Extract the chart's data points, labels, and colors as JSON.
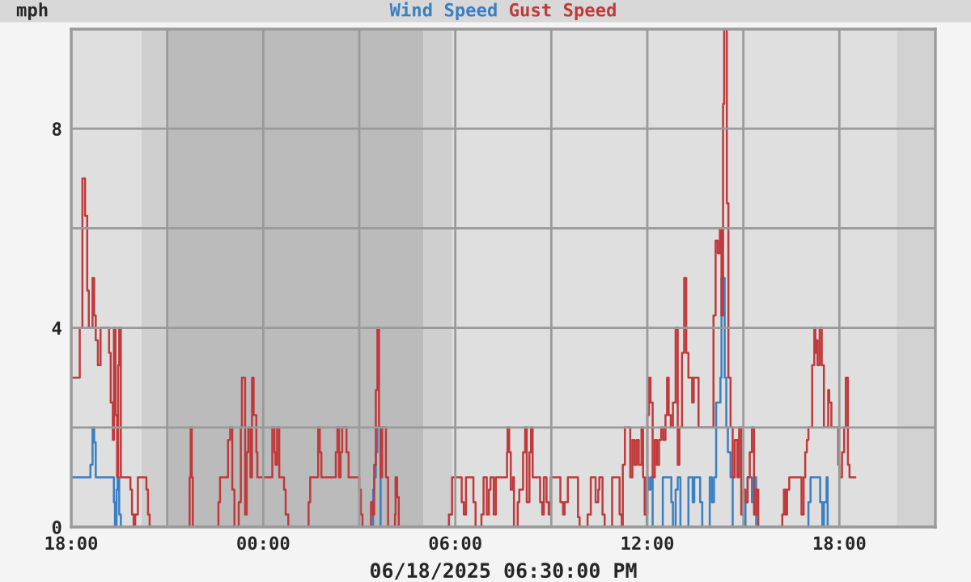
{
  "chart_data": {
    "type": "step",
    "xlabel": "06/18/2025 06:30:00 PM",
    "ylabel": "mph",
    "xlim": [
      "2025-06-17T18:00",
      "2025-06-18T21:00"
    ],
    "ylim": [
      0,
      10
    ],
    "xticks": [
      {
        "value": "2025-06-17T18:00",
        "label": "18:00"
      },
      {
        "value": "2025-06-17T21:00",
        "label": null
      },
      {
        "value": "2025-06-18T00:00",
        "label": "00:00"
      },
      {
        "value": "2025-06-18T03:00",
        "label": null
      },
      {
        "value": "2025-06-18T06:00",
        "label": "06:00"
      },
      {
        "value": "2025-06-18T09:00",
        "label": null
      },
      {
        "value": "2025-06-18T12:00",
        "label": "12:00"
      },
      {
        "value": "2025-06-18T15:00",
        "label": null
      },
      {
        "value": "2025-06-18T18:00",
        "label": "18:00"
      }
    ],
    "yticks": [
      0,
      {
        "value": 2,
        "label": null
      },
      4,
      {
        "value": 6,
        "label": null
      },
      8
    ],
    "grid": true,
    "legend": "top",
    "bands": [
      {
        "axis": "x",
        "from": "2025-06-17T20:12",
        "to": "2025-06-17T21:00",
        "color": "#cfcfcf"
      },
      {
        "axis": "x",
        "from": "2025-06-17T21:00",
        "to": "2025-06-18T05:00",
        "color": "#bbbbbb"
      },
      {
        "axis": "x",
        "from": "2025-06-18T05:00",
        "to": "2025-06-18T05:54",
        "color": "#cfcfcf"
      },
      {
        "axis": "x",
        "from": "2025-06-18T19:48",
        "to": "2025-06-18T21:00",
        "color": "#d2d2d2"
      }
    ],
    "series": [
      {
        "name": "Wind Speed",
        "color": "#3a7fc1",
        "x": [
          "2025-06-17T18:00",
          "2025-06-17T18:36",
          "2025-06-17T18:40",
          "2025-06-17T18:43",
          "2025-06-17T18:46",
          "2025-06-17T19:20",
          "2025-06-17T19:22",
          "2025-06-17T19:25",
          "2025-06-17T19:27",
          "2025-06-17T19:30",
          "2025-06-17T19:33",
          "2025-06-18T03:26",
          "2025-06-18T03:28",
          "2025-06-18T03:31",
          "2025-06-18T03:34",
          "2025-06-18T03:40",
          "2025-06-18T11:59",
          "2025-06-18T12:02",
          "2025-06-18T12:06",
          "2025-06-18T12:10",
          "2025-06-18T12:29",
          "2025-06-18T12:45",
          "2025-06-18T12:48",
          "2025-06-18T12:53",
          "2025-06-18T12:57",
          "2025-06-18T13:02",
          "2025-06-18T13:17",
          "2025-06-18T13:25",
          "2025-06-18T13:28",
          "2025-06-18T13:39",
          "2025-06-18T13:43",
          "2025-06-18T13:57",
          "2025-06-18T14:01",
          "2025-06-18T14:05",
          "2025-06-18T14:09",
          "2025-06-18T14:17",
          "2025-06-18T14:19",
          "2025-06-18T14:25",
          "2025-06-18T14:28",
          "2025-06-18T14:31",
          "2025-06-18T14:36",
          "2025-06-18T14:40",
          "2025-06-18T15:04",
          "2025-06-18T15:08",
          "2025-06-18T15:16",
          "2025-06-18T15:20",
          "2025-06-18T15:24",
          "2025-06-18T17:02",
          "2025-06-18T17:06",
          "2025-06-18T17:24",
          "2025-06-18T17:28",
          "2025-06-18T17:31",
          "2025-06-18T17:36",
          "2025-06-18T17:38",
          "2025-06-18T18:30"
        ],
        "values": [
          1.0,
          1.25,
          2.0,
          1.7,
          1.0,
          0.5,
          0,
          0.75,
          1.0,
          0.25,
          0,
          0.75,
          1.0,
          1.5,
          2.0,
          0,
          1.0,
          0.75,
          1.0,
          0,
          1.0,
          0.5,
          0,
          0.75,
          1.0,
          0,
          1.0,
          0.5,
          1.0,
          0.5,
          0,
          1.0,
          0.5,
          1.0,
          2.5,
          3.0,
          5.0,
          3.0,
          2.0,
          1.5,
          1.0,
          0,
          0.5,
          1.0,
          0.5,
          1.0,
          0,
          0.5,
          1.0,
          0.5,
          0,
          0.5,
          1.0,
          0,
          0
        ]
      },
      {
        "name": "Gust Speed",
        "color": "#c0393b",
        "x": [
          "2025-06-17T18:00",
          "2025-06-17T18:16",
          "2025-06-17T18:21",
          "2025-06-17T18:26",
          "2025-06-17T18:30",
          "2025-06-17T18:33",
          "2025-06-17T18:40",
          "2025-06-17T18:43",
          "2025-06-17T18:46",
          "2025-06-17T18:50",
          "2025-06-17T18:55",
          "2025-06-17T19:11",
          "2025-06-17T19:14",
          "2025-06-17T19:18",
          "2025-06-17T19:20",
          "2025-06-17T19:23",
          "2025-06-17T19:26",
          "2025-06-17T19:28",
          "2025-06-17T19:30",
          "2025-06-17T19:33",
          "2025-06-17T19:51",
          "2025-06-17T19:54",
          "2025-06-17T19:57",
          "2025-06-17T20:00",
          "2025-06-17T20:05",
          "2025-06-17T20:21",
          "2025-06-17T20:24",
          "2025-06-17T20:27",
          "2025-06-17T21:42",
          "2025-06-17T21:44",
          "2025-06-17T21:46",
          "2025-06-17T21:48",
          "2025-06-17T22:36",
          "2025-06-17T22:39",
          "2025-06-17T22:54",
          "2025-06-17T22:58",
          "2025-06-17T23:02",
          "2025-06-17T23:06",
          "2025-06-17T23:14",
          "2025-06-17T23:18",
          "2025-06-17T23:20",
          "2025-06-17T23:26",
          "2025-06-17T23:29",
          "2025-06-17T23:32",
          "2025-06-17T23:36",
          "2025-06-17T23:39",
          "2025-06-17T23:42",
          "2025-06-17T23:47",
          "2025-06-17T23:49",
          "2025-06-18T00:17",
          "2025-06-18T00:21",
          "2025-06-18T00:23",
          "2025-06-18T00:26",
          "2025-06-18T00:30",
          "2025-06-18T00:39",
          "2025-06-18T00:42",
          "2025-06-18T00:47",
          "2025-06-18T01:25",
          "2025-06-18T01:28",
          "2025-06-18T01:43",
          "2025-06-18T01:46",
          "2025-06-18T01:49",
          "2025-06-18T02:16",
          "2025-06-18T02:19",
          "2025-06-18T02:22",
          "2025-06-18T02:25",
          "2025-06-18T02:28",
          "2025-06-18T02:36",
          "2025-06-18T02:40",
          "2025-06-18T03:00",
          "2025-06-18T03:03",
          "2025-06-18T03:06",
          "2025-06-18T03:22",
          "2025-06-18T03:25",
          "2025-06-18T03:28",
          "2025-06-18T03:31",
          "2025-06-18T03:34",
          "2025-06-18T03:37",
          "2025-06-18T03:40",
          "2025-06-18T03:43",
          "2025-06-18T03:50",
          "2025-06-18T03:54",
          "2025-06-18T04:07",
          "2025-06-18T04:08",
          "2025-06-18T04:11",
          "2025-06-18T04:14",
          "2025-06-18T05:48",
          "2025-06-18T05:54",
          "2025-06-18T06:12",
          "2025-06-18T06:16",
          "2025-06-18T06:20",
          "2025-06-18T06:34",
          "2025-06-18T06:38",
          "2025-06-18T06:49",
          "2025-06-18T06:53",
          "2025-06-18T06:59",
          "2025-06-18T07:03",
          "2025-06-18T07:06",
          "2025-06-18T07:12",
          "2025-06-18T07:16",
          "2025-06-18T07:37",
          "2025-06-18T07:38",
          "2025-06-18T07:41",
          "2025-06-18T07:44",
          "2025-06-18T07:48",
          "2025-06-18T07:50",
          "2025-06-18T07:57",
          "2025-06-18T08:00",
          "2025-06-18T08:07",
          "2025-06-18T08:11",
          "2025-06-18T08:14",
          "2025-06-18T08:19",
          "2025-06-18T08:22",
          "2025-06-18T08:25",
          "2025-06-18T08:39",
          "2025-06-18T08:43",
          "2025-06-18T08:46",
          "2025-06-18T08:51",
          "2025-06-18T08:55",
          "2025-06-18T08:59",
          "2025-06-18T09:17",
          "2025-06-18T09:22",
          "2025-06-18T09:25",
          "2025-06-18T09:31",
          "2025-06-18T09:50",
          "2025-06-18T09:53",
          "2025-06-18T10:08",
          "2025-06-18T10:14",
          "2025-06-18T10:23",
          "2025-06-18T10:28",
          "2025-06-18T10:30",
          "2025-06-18T10:36",
          "2025-06-18T10:40",
          "2025-06-18T10:54",
          "2025-06-18T11:08",
          "2025-06-18T11:12",
          "2025-06-18T11:14",
          "2025-06-18T11:18",
          "2025-06-18T11:28",
          "2025-06-18T11:32",
          "2025-06-18T11:36",
          "2025-06-18T11:40",
          "2025-06-18T11:44",
          "2025-06-18T11:49",
          "2025-06-18T11:52",
          "2025-06-18T11:55",
          "2025-06-18T12:00",
          "2025-06-18T12:03",
          "2025-06-18T12:06",
          "2025-06-18T12:10",
          "2025-06-18T12:14",
          "2025-06-18T12:18",
          "2025-06-18T12:22",
          "2025-06-18T12:26",
          "2025-06-18T12:30",
          "2025-06-18T12:34",
          "2025-06-18T12:37",
          "2025-06-18T12:40",
          "2025-06-18T12:44",
          "2025-06-18T12:48",
          "2025-06-18T12:53",
          "2025-06-18T12:57",
          "2025-06-18T13:00",
          "2025-06-18T13:05",
          "2025-06-18T13:09",
          "2025-06-18T13:13",
          "2025-06-18T13:17",
          "2025-06-18T13:24",
          "2025-06-18T13:27",
          "2025-06-18T13:36",
          "2025-06-18T14:04",
          "2025-06-18T14:08",
          "2025-06-18T14:12",
          "2025-06-18T14:16",
          "2025-06-18T14:19",
          "2025-06-18T14:22",
          "2025-06-18T14:24",
          "2025-06-18T14:29",
          "2025-06-18T14:32",
          "2025-06-18T14:36",
          "2025-06-18T14:40",
          "2025-06-18T14:44",
          "2025-06-18T14:49",
          "2025-06-18T14:52",
          "2025-06-18T14:56",
          "2025-06-18T15:00",
          "2025-06-18T15:04",
          "2025-06-18T15:08",
          "2025-06-18T15:12",
          "2025-06-18T15:16",
          "2025-06-18T15:20",
          "2025-06-18T15:24",
          "2025-06-18T15:28",
          "2025-06-18T16:13",
          "2025-06-18T16:16",
          "2025-06-18T16:19",
          "2025-06-18T16:22",
          "2025-06-18T16:26",
          "2025-06-18T16:49",
          "2025-06-18T16:53",
          "2025-06-18T16:56",
          "2025-06-18T16:59",
          "2025-06-18T17:02",
          "2025-06-18T17:09",
          "2025-06-18T17:13",
          "2025-06-18T17:15",
          "2025-06-18T17:17",
          "2025-06-18T17:19",
          "2025-06-18T17:23",
          "2025-06-18T17:27",
          "2025-06-18T17:31",
          "2025-06-18T17:39",
          "2025-06-18T17:41",
          "2025-06-18T17:45",
          "2025-06-18T17:58",
          "2025-06-18T18:00",
          "2025-06-18T18:05",
          "2025-06-18T18:09",
          "2025-06-18T18:12",
          "2025-06-18T18:16",
          "2025-06-18T18:19",
          "2025-06-18T18:30"
        ],
        "values": [
          3.0,
          4.0,
          7.0,
          6.25,
          4.75,
          4.0,
          5.0,
          4.25,
          3.75,
          3.25,
          4.0,
          3.5,
          2.5,
          1.75,
          4.0,
          2.25,
          1.0,
          3.25,
          4.0,
          1.0,
          0.75,
          0.25,
          0,
          0.25,
          1.0,
          0.75,
          0.25,
          0,
          1.0,
          2.0,
          1.0,
          0,
          0.5,
          1.0,
          1.75,
          2.0,
          0.75,
          0,
          0.5,
          2.0,
          3.0,
          0.25,
          1.5,
          2.0,
          1.0,
          3.0,
          2.25,
          1.5,
          1.0,
          2.0,
          1.5,
          1.25,
          2.0,
          1.0,
          0.75,
          0.25,
          0,
          0.5,
          1.0,
          2.0,
          1.5,
          1.0,
          1.5,
          2.0,
          1.0,
          1.5,
          2.0,
          1.5,
          1.0,
          0.75,
          0.25,
          0,
          0.5,
          0.25,
          1.25,
          2.75,
          4.0,
          2.0,
          1.0,
          2.0,
          1.0,
          0,
          0.25,
          1.0,
          0.6,
          0,
          0.25,
          1.0,
          0.5,
          0.25,
          1.0,
          0.5,
          0,
          0.25,
          1.0,
          0.25,
          0.75,
          1.0,
          0.25,
          1.0,
          1.5,
          2.0,
          1.5,
          0.75,
          1.0,
          0,
          0.5,
          0.75,
          1.5,
          2.0,
          0.5,
          1.5,
          2.0,
          1.0,
          0.5,
          0.25,
          1.0,
          0.5,
          0.25,
          1.0,
          0.5,
          0.25,
          0.5,
          1.0,
          0.2,
          0,
          0.25,
          1.0,
          0.5,
          0.75,
          1.0,
          0.25,
          0,
          1.0,
          0.25,
          0,
          1.25,
          2.0,
          1.0,
          1.75,
          1.25,
          1.75,
          1.25,
          2.0,
          1.0,
          0.25,
          2.25,
          3.0,
          2.5,
          1.0,
          1.75,
          1.25,
          1.75,
          2.0,
          1.75,
          2.25,
          3.0,
          2.25,
          2.0,
          2.5,
          4.0,
          1.25,
          2.0,
          3.5,
          5.0,
          3.5,
          3.0,
          2.5,
          3.0,
          2.0,
          4.25,
          5.75,
          5.5,
          6.0,
          4.25,
          8.5,
          10.0,
          6.5,
          3.0,
          2.0,
          1.0,
          1.75,
          1.0,
          2.0,
          0.25,
          0.75,
          0.5,
          1.0,
          1.5,
          2.0,
          0.25,
          0.75,
          0,
          0.25,
          0.75,
          0.25,
          0.75,
          1.0,
          0.25,
          1.0,
          1.5,
          1.75,
          2.0,
          3.25,
          4.0,
          3.5,
          3.75,
          3.25,
          4.0,
          3.25,
          2.0,
          2.75,
          2.5,
          2.0,
          1.25,
          1.0,
          1.5,
          2.0,
          3.0,
          1.25,
          1.0,
          1.0
        ]
      }
    ]
  }
}
